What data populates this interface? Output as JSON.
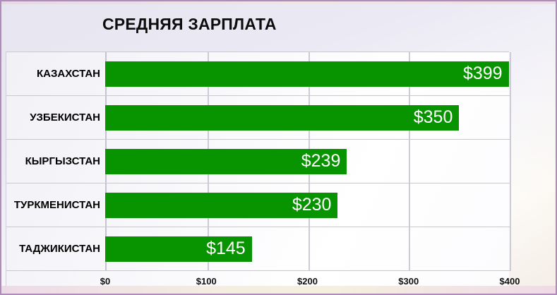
{
  "chart_data": {
    "type": "bar",
    "orientation": "horizontal",
    "title": "СРЕДНЯЯ ЗАРПЛАТА",
    "categories": [
      "КАЗАХСТАН",
      "УЗБЕКИСТАН",
      "КЫРГЫЗСТАН",
      "ТУРКМЕНИСТАН",
      "ТАДЖИКИСТАН"
    ],
    "values": [
      399,
      350,
      239,
      230,
      145
    ],
    "data_labels": [
      "$399",
      "$350",
      "$239",
      "$230",
      "$145"
    ],
    "x_ticks": [
      "$0",
      "$100",
      "$200",
      "$300",
      "$400"
    ],
    "x_tick_values": [
      0,
      100,
      200,
      300,
      400
    ],
    "xlim": [
      0,
      400
    ],
    "grid": true,
    "legend": false,
    "bar_color": "#089400",
    "data_label_color": "#ffffff",
    "category_label_color": "#000000",
    "gridline_color": "#cdcbd8"
  }
}
